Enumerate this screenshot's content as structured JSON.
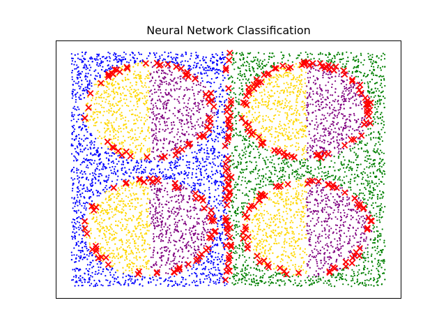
{
  "chart_data": {
    "type": "scatter",
    "title": "Neural Network Classification",
    "xlabel": "",
    "ylabel": "",
    "xlim": [
      -0.05,
      1.05
    ],
    "ylim": [
      -0.05,
      1.05
    ],
    "axis_ticks": "hidden",
    "grid": false,
    "legend": "none",
    "class_colors": {
      "left_background": "#0000ff",
      "right_background": "#008000",
      "ellipse_left_half": "#ffd700",
      "ellipse_right_half": "#800080",
      "misclassified_marker": "#ff0000"
    },
    "regions": [
      {
        "quadrant": "top-left",
        "center": [
          0.25,
          0.75
        ],
        "radii": [
          0.21,
          0.21
        ],
        "split_x": 0.25
      },
      {
        "quadrant": "top-right",
        "center": [
          0.75,
          0.75
        ],
        "radii": [
          0.21,
          0.21
        ],
        "split_x": 0.75
      },
      {
        "quadrant": "bottom-left",
        "center": [
          0.25,
          0.25
        ],
        "radii": [
          0.21,
          0.21
        ],
        "split_x": 0.25
      },
      {
        "quadrant": "bottom-right",
        "center": [
          0.75,
          0.25
        ],
        "radii": [
          0.21,
          0.21
        ],
        "split_x": 0.75
      }
    ],
    "background_split_x": 0.5,
    "point_count": 9000,
    "error_marker": "x"
  }
}
